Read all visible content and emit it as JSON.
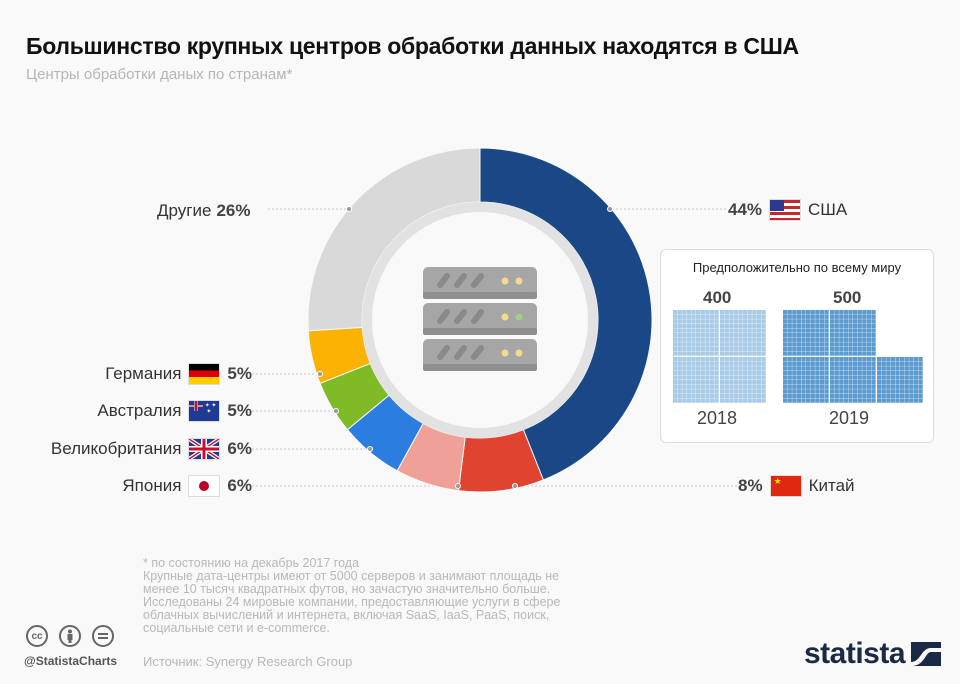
{
  "header": {
    "title": "Большинство крупных центров обработки данных находятся в США",
    "subtitle": "Центры обработки даных по странам*"
  },
  "chart_data": {
    "type": "pie",
    "variant": "donut",
    "title": "Большинство крупных центров обработки данных находятся в США",
    "subtitle": "Центры обработки даных по странам*",
    "unit": "%",
    "slices": [
      {
        "label": "США",
        "value": 44,
        "value_label": "44%",
        "color": "#1a4786",
        "flag": "us-flag-icon"
      },
      {
        "label": "Китай",
        "value": 8,
        "value_label": "8%",
        "color": "#e04431",
        "flag": "china-flag-icon"
      },
      {
        "label": "Япония",
        "value": 6,
        "value_label": "6%",
        "color": "#f0a197",
        "flag": "japan-flag-icon"
      },
      {
        "label": "Великобритания",
        "value": 6,
        "value_label": "6%",
        "color": "#2b7de0",
        "flag": "uk-flag-icon"
      },
      {
        "label": "Австралия",
        "value": 5,
        "value_label": "5%",
        "color": "#7fba27",
        "flag": "australia-flag-icon"
      },
      {
        "label": "Германия",
        "value": 5,
        "value_label": "5%",
        "color": "#fbb200",
        "flag": "germany-flag-icon"
      },
      {
        "label": "Другие",
        "value": 26,
        "value_label": "26%",
        "color": "#d9d9d9",
        "flag": null
      }
    ],
    "center_icon": "server-rack-icon",
    "inset": {
      "title": "Предположительно по всему миру",
      "type": "waffle",
      "categories": [
        "2018",
        "2019"
      ],
      "values": [
        400,
        500
      ],
      "value_labels": [
        "400",
        "500"
      ],
      "colors": [
        "#a9cbe8",
        "#5b9bd0"
      ]
    }
  },
  "footer": {
    "note_lines": [
      "* по состоянию на декабрь 2017 года",
      "Крупные дата-центры имеют от 5000 серверов и занимают площадь не",
      "менее 10 тысяч квадратных футов, но зачастую значительно больше.",
      "Исследованы 24 мировые компании, предоставляющие услуги в сфере",
      "облачных вычислений и интернета, включая SaaS, IaaS, PaaS, поиск,",
      "социальные сети и e-commerce."
    ],
    "source": "Источник: Synergy Research Group",
    "handle": "@StatistaCharts",
    "license_icons": [
      "cc",
      "by",
      "nd"
    ],
    "logo": "statista"
  }
}
